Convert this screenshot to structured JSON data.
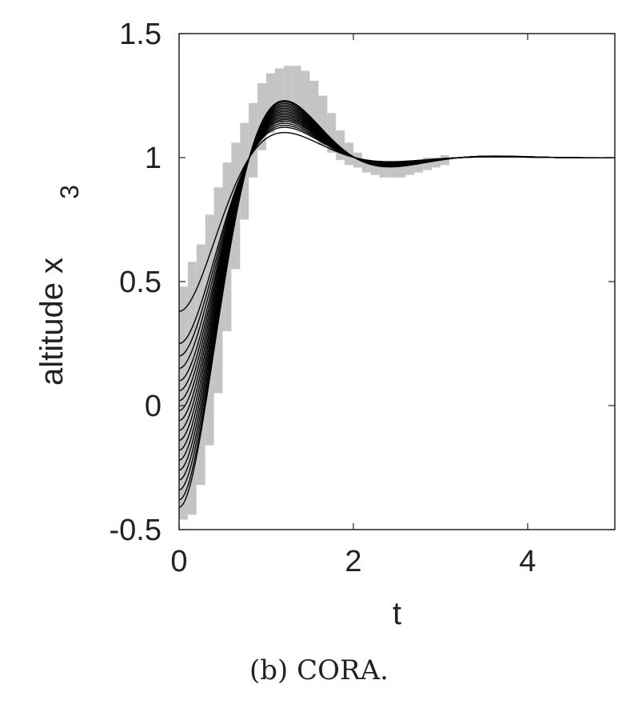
{
  "chart_data": {
    "type": "line",
    "xlabel": "t",
    "ylabel": "altitude x",
    "ylabel_subscript": "3",
    "xlim": [
      0,
      5
    ],
    "ylim": [
      -0.5,
      1.5
    ],
    "xticks": [
      0,
      2,
      4
    ],
    "yticks": [
      -0.5,
      0,
      0.5,
      1,
      1.5
    ],
    "xtick_labels": [
      "0",
      "2",
      "4"
    ],
    "ytick_labels": [
      "-0.5",
      "0",
      "0.5",
      "1",
      "1.5"
    ],
    "grid": false,
    "legend": "none",
    "trajectory_initial_values": [
      0.38,
      0.25,
      0.2,
      0.15,
      0.1,
      0.06,
      0.02,
      -0.02,
      -0.06,
      -0.1,
      -0.14,
      -0.18,
      -0.22,
      -0.26,
      -0.3,
      -0.34,
      -0.38,
      -0.41
    ],
    "reach_set_bounds": {
      "t": [
        0,
        0.1,
        0.2,
        0.3,
        0.4,
        0.5,
        0.6,
        0.7,
        0.8,
        0.9,
        1.0,
        1.1,
        1.2,
        1.3,
        1.4,
        1.5,
        1.6,
        1.7,
        1.8,
        1.9,
        2.0,
        2.1,
        2.2,
        2.3,
        2.4,
        2.5,
        2.6,
        2.7,
        2.8,
        2.9,
        3.0
      ],
      "lower": [
        -0.46,
        -0.44,
        -0.32,
        -0.16,
        0.05,
        0.3,
        0.55,
        0.75,
        0.92,
        1.03,
        1.1,
        1.14,
        1.15,
        1.14,
        1.12,
        1.09,
        1.05,
        1.02,
        0.99,
        0.97,
        0.96,
        0.94,
        0.93,
        0.92,
        0.92,
        0.92,
        0.93,
        0.94,
        0.95,
        0.96,
        0.97
      ],
      "upper": [
        0.48,
        0.58,
        0.65,
        0.77,
        0.88,
        0.98,
        1.06,
        1.14,
        1.22,
        1.3,
        1.34,
        1.36,
        1.37,
        1.37,
        1.35,
        1.31,
        1.25,
        1.18,
        1.11,
        1.06,
        1.02,
        0.99,
        0.98,
        0.97,
        0.97,
        0.97,
        0.98,
        0.99,
        1.0,
        1.0,
        1.01
      ]
    },
    "colors": {
      "trajectory": "#000000",
      "reach_set": "#c4c4c4",
      "axes": "#222222"
    }
  },
  "caption": "(b) CORA."
}
